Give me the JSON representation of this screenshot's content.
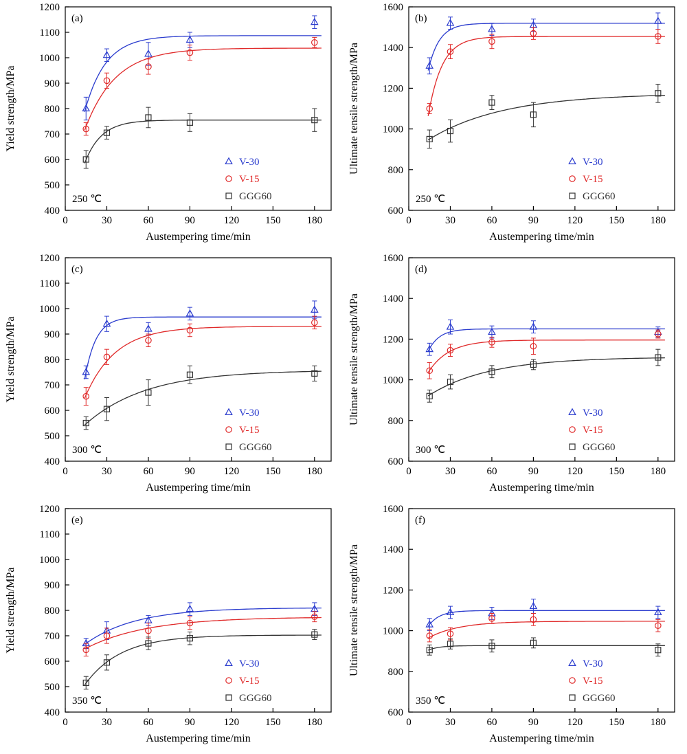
{
  "page": {
    "background": "#ffffff"
  },
  "colors": {
    "v30": "#2b3cce",
    "v15": "#e02a2a",
    "ggg60": "#333333",
    "axis": "#000000"
  },
  "chart_data": [
    {
      "type": "scatter",
      "panel_label": "(a)",
      "annotation": "250 ℃",
      "xlabel": "Austempering time/min",
      "ylabel": "Yield strength/MPa",
      "xlim": [
        0,
        192
      ],
      "ylim": [
        400,
        1200
      ],
      "xticks": [
        0,
        30,
        60,
        90,
        120,
        150,
        180
      ],
      "yticks": [
        400,
        500,
        600,
        700,
        800,
        900,
        1000,
        1100,
        1200
      ],
      "x": [
        15,
        30,
        60,
        90,
        180
      ],
      "legend_position": "bottom-right",
      "series": [
        {
          "name": "V-30",
          "color": "#2b3cce",
          "marker": "triangle",
          "values": [
            800,
            1010,
            1015,
            1070,
            1140
          ],
          "errors": [
            45,
            25,
            45,
            30,
            25
          ]
        },
        {
          "name": "V-15",
          "color": "#e02a2a",
          "marker": "circle",
          "values": [
            720,
            910,
            965,
            1020,
            1060
          ],
          "errors": [
            25,
            30,
            30,
            30,
            20
          ]
        },
        {
          "name": "GGG60",
          "color": "#333333",
          "marker": "square",
          "values": [
            600,
            705,
            765,
            745,
            755
          ],
          "errors": [
            35,
            25,
            40,
            35,
            45
          ]
        }
      ]
    },
    {
      "type": "scatter",
      "panel_label": "(b)",
      "annotation": "250 ℃",
      "xlabel": "Austempering time/min",
      "ylabel": "Ultimate tensile strength/MPa",
      "xlim": [
        0,
        192
      ],
      "ylim": [
        600,
        1600
      ],
      "xticks": [
        0,
        30,
        60,
        90,
        120,
        150,
        180
      ],
      "yticks": [
        600,
        800,
        1000,
        1200,
        1400,
        1600
      ],
      "x": [
        15,
        30,
        60,
        90,
        180
      ],
      "legend_position": "bottom-right",
      "series": [
        {
          "name": "V-30",
          "color": "#2b3cce",
          "marker": "triangle",
          "values": [
            1310,
            1520,
            1490,
            1510,
            1530
          ],
          "errors": [
            40,
            30,
            30,
            30,
            40
          ]
        },
        {
          "name": "V-15",
          "color": "#e02a2a",
          "marker": "circle",
          "values": [
            1100,
            1380,
            1430,
            1470,
            1455
          ],
          "errors": [
            25,
            35,
            35,
            30,
            35
          ]
        },
        {
          "name": "GGG60",
          "color": "#333333",
          "marker": "square",
          "values": [
            950,
            990,
            1130,
            1070,
            1175
          ],
          "errors": [
            45,
            55,
            35,
            60,
            45
          ]
        }
      ]
    },
    {
      "type": "scatter",
      "panel_label": "(c)",
      "annotation": "300 ℃",
      "xlabel": "Austempering time/min",
      "ylabel": "Yield strength/MPa",
      "xlim": [
        0,
        192
      ],
      "ylim": [
        400,
        1200
      ],
      "xticks": [
        0,
        30,
        60,
        90,
        120,
        150,
        180
      ],
      "yticks": [
        400,
        500,
        600,
        700,
        800,
        900,
        1000,
        1100,
        1200
      ],
      "x": [
        15,
        30,
        60,
        90,
        180
      ],
      "legend_position": "bottom-right",
      "series": [
        {
          "name": "V-30",
          "color": "#2b3cce",
          "marker": "triangle",
          "values": [
            750,
            940,
            920,
            980,
            995
          ],
          "errors": [
            25,
            30,
            25,
            25,
            35
          ]
        },
        {
          "name": "V-15",
          "color": "#e02a2a",
          "marker": "circle",
          "values": [
            655,
            810,
            875,
            915,
            945
          ],
          "errors": [
            35,
            30,
            25,
            25,
            25
          ]
        },
        {
          "name": "GGG60",
          "color": "#333333",
          "marker": "square",
          "values": [
            550,
            605,
            670,
            740,
            745
          ],
          "errors": [
            25,
            45,
            50,
            35,
            30
          ]
        }
      ]
    },
    {
      "type": "scatter",
      "panel_label": "(d)",
      "annotation": "300 ℃",
      "xlabel": "Austempering time/min",
      "ylabel": "Ultimate tensile strength/MPa",
      "xlim": [
        0,
        192
      ],
      "ylim": [
        600,
        1600
      ],
      "xticks": [
        0,
        30,
        60,
        90,
        120,
        150,
        180
      ],
      "yticks": [
        600,
        800,
        1000,
        1200,
        1400,
        1600
      ],
      "x": [
        15,
        30,
        60,
        90,
        180
      ],
      "legend_position": "bottom-right",
      "series": [
        {
          "name": "V-30",
          "color": "#2b3cce",
          "marker": "triangle",
          "values": [
            1150,
            1260,
            1235,
            1260,
            1235
          ],
          "errors": [
            30,
            35,
            30,
            30,
            25
          ]
        },
        {
          "name": "V-15",
          "color": "#e02a2a",
          "marker": "circle",
          "values": [
            1045,
            1145,
            1185,
            1165,
            1225
          ],
          "errors": [
            40,
            30,
            25,
            40,
            20
          ]
        },
        {
          "name": "GGG60",
          "color": "#333333",
          "marker": "square",
          "values": [
            920,
            990,
            1040,
            1075,
            1110
          ],
          "errors": [
            30,
            35,
            30,
            25,
            40
          ]
        }
      ]
    },
    {
      "type": "scatter",
      "panel_label": "(e)",
      "annotation": "350 ℃",
      "xlabel": "Austempering time/min",
      "ylabel": "Yield strength/MPa",
      "xlim": [
        0,
        192
      ],
      "ylim": [
        400,
        1200
      ],
      "xticks": [
        0,
        30,
        60,
        90,
        120,
        150,
        180
      ],
      "yticks": [
        400,
        500,
        600,
        700,
        800,
        900,
        1000,
        1100,
        1200
      ],
      "x": [
        15,
        30,
        60,
        90,
        180
      ],
      "legend_position": "bottom-right",
      "series": [
        {
          "name": "V-30",
          "color": "#2b3cce",
          "marker": "triangle",
          "values": [
            670,
            720,
            760,
            805,
            805
          ],
          "errors": [
            20,
            35,
            20,
            25,
            25
          ]
        },
        {
          "name": "V-15",
          "color": "#e02a2a",
          "marker": "circle",
          "values": [
            645,
            700,
            720,
            750,
            775
          ],
          "errors": [
            25,
            30,
            30,
            25,
            20
          ]
        },
        {
          "name": "GGG60",
          "color": "#333333",
          "marker": "square",
          "values": [
            515,
            595,
            670,
            690,
            705
          ],
          "errors": [
            25,
            30,
            25,
            25,
            20
          ]
        }
      ]
    },
    {
      "type": "scatter",
      "panel_label": "(f)",
      "annotation": "350 ℃",
      "xlabel": "Austempering time/min",
      "ylabel": "Ultimate tensile strength/MPa",
      "xlim": [
        0,
        192
      ],
      "ylim": [
        600,
        1600
      ],
      "xticks": [
        0,
        30,
        60,
        90,
        120,
        150,
        180
      ],
      "yticks": [
        600,
        800,
        1000,
        1200,
        1400,
        1600
      ],
      "x": [
        15,
        30,
        60,
        90,
        180
      ],
      "legend_position": "bottom-right",
      "series": [
        {
          "name": "V-30",
          "color": "#2b3cce",
          "marker": "triangle",
          "values": [
            1030,
            1090,
            1085,
            1120,
            1090
          ],
          "errors": [
            30,
            30,
            30,
            35,
            30
          ]
        },
        {
          "name": "V-15",
          "color": "#e02a2a",
          "marker": "circle",
          "values": [
            975,
            985,
            1060,
            1055,
            1025
          ],
          "errors": [
            30,
            30,
            25,
            30,
            30
          ]
        },
        {
          "name": "GGG60",
          "color": "#333333",
          "marker": "square",
          "values": [
            905,
            935,
            925,
            940,
            905
          ],
          "errors": [
            25,
            25,
            30,
            25,
            30
          ]
        }
      ]
    }
  ]
}
